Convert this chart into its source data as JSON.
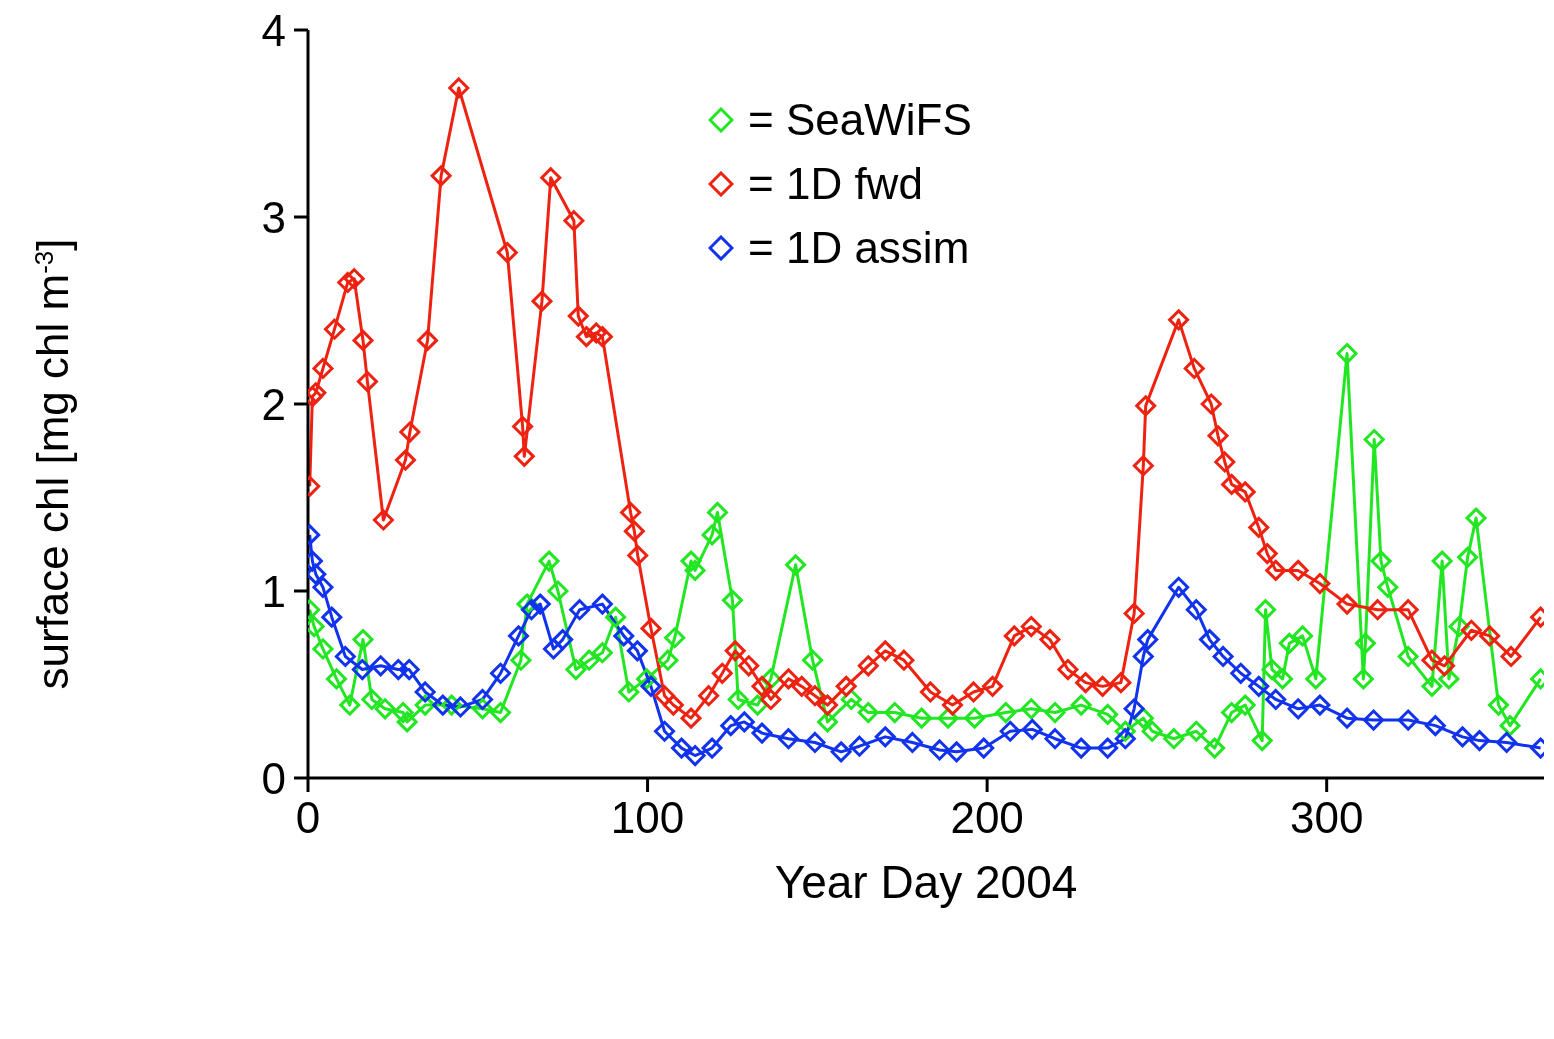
{
  "chart_data": {
    "type": "line",
    "xlabel": "Year Day 2004",
    "ylabel": "surface chl [mg chl m$^{-3}$]",
    "xlim": [
      0,
      364
    ],
    "ylim": [
      0,
      4
    ],
    "xticks": [
      0,
      100,
      200,
      300
    ],
    "yticks": [
      0,
      1,
      2,
      3,
      4
    ],
    "grid": false,
    "legend": "top",
    "marker": "diamond",
    "line_style": "solid",
    "series": [
      {
        "name": "= SeaWiFS",
        "color": "#22e622",
        "x": [
          0.5,
          1.8,
          4.4,
          8.4,
          12.3,
          16.2,
          18.8,
          22.7,
          28,
          29.2,
          34.5,
          42.3,
          51.4,
          56.7,
          62.7,
          64.5,
          71,
          73.6,
          78.9,
          82.8,
          86.7,
          90.6,
          94.5,
          99.7,
          106,
          108,
          112.8,
          114,
          119,
          120.6,
          125,
          126.7,
          132.4,
          136.3,
          143.6,
          148.6,
          153,
          160,
          165,
          172.8,
          180.7,
          188.5,
          196.3,
          205.5,
          213,
          220,
          227.7,
          235.5,
          240.7,
          246,
          248.6,
          255,
          261.6,
          267,
          272,
          276,
          281,
          282,
          283.9,
          287,
          289,
          292.9,
          296.8,
          306,
          310.8,
          311.4,
          314,
          316,
          318,
          324,
          331,
          334,
          336,
          339,
          341.5,
          344,
          350.6,
          354,
          363
        ],
        "values": [
          0.9,
          0.81,
          0.69,
          0.53,
          0.39,
          0.74,
          0.42,
          0.37,
          0.35,
          0.3,
          0.39,
          0.39,
          0.37,
          0.35,
          0.63,
          0.93,
          1.16,
          1.0,
          0.58,
          0.63,
          0.67,
          0.86,
          0.46,
          0.53,
          0.63,
          0.75,
          1.16,
          1.11,
          1.3,
          1.42,
          0.95,
          0.42,
          0.39,
          0.53,
          1.14,
          0.63,
          0.3,
          0.42,
          0.35,
          0.35,
          0.32,
          0.32,
          0.32,
          0.35,
          0.37,
          0.35,
          0.39,
          0.34,
          0.25,
          0.32,
          0.25,
          0.21,
          0.25,
          0.16,
          0.35,
          0.39,
          0.2,
          0.9,
          0.58,
          0.53,
          0.72,
          0.76,
          0.53,
          2.27,
          0.53,
          0.72,
          1.81,
          1.16,
          1.02,
          0.65,
          0.49,
          1.16,
          0.53,
          0.81,
          1.18,
          1.39,
          0.39,
          0.28,
          0.53
        ]
      },
      {
        "name": "= 1D fwd",
        "color": "#ee2211",
        "x": [
          0.5,
          1.3,
          2.3,
          4.4,
          7.8,
          11.7,
          13.6,
          16.2,
          17.5,
          22.2,
          28.7,
          30,
          35.2,
          39.2,
          44.4,
          58.7,
          63.2,
          63.7,
          68.9,
          71.5,
          78.3,
          79.6,
          82,
          84.9,
          86.7,
          95,
          96.1,
          97.1,
          101,
          105,
          107.6,
          112.8,
          118,
          122,
          125.8,
          129.8,
          133.7,
          136.3,
          141.5,
          145.4,
          149.3,
          153,
          158.5,
          165,
          170,
          175.5,
          183.3,
          189.8,
          196,
          201.6,
          208,
          213,
          218.5,
          223.8,
          229,
          234,
          239.4,
          243.3,
          246,
          246.7,
          256.4,
          261,
          266,
          268,
          270,
          272,
          276,
          280,
          282.5,
          285,
          291.6,
          298,
          306,
          315,
          324,
          331,
          334.7,
          342.6,
          348,
          354.3,
          363
        ],
        "values": [
          1.56,
          2.04,
          2.06,
          2.19,
          2.4,
          2.65,
          2.67,
          2.34,
          2.12,
          1.38,
          1.7,
          1.85,
          2.34,
          3.22,
          3.69,
          2.81,
          1.88,
          1.72,
          2.55,
          3.21,
          2.98,
          2.47,
          2.36,
          2.38,
          2.36,
          1.42,
          1.32,
          1.19,
          0.8,
          0.44,
          0.39,
          0.32,
          0.44,
          0.56,
          0.68,
          0.6,
          0.49,
          0.42,
          0.53,
          0.49,
          0.44,
          0.39,
          0.49,
          0.6,
          0.68,
          0.63,
          0.46,
          0.39,
          0.46,
          0.49,
          0.76,
          0.81,
          0.74,
          0.58,
          0.51,
          0.49,
          0.51,
          0.88,
          1.67,
          1.99,
          2.45,
          2.19,
          2.0,
          1.83,
          1.69,
          1.57,
          1.53,
          1.34,
          1.2,
          1.11,
          1.11,
          1.04,
          0.93,
          0.9,
          0.9,
          0.63,
          0.6,
          0.79,
          0.76,
          0.65,
          0.86
        ]
      },
      {
        "name": "= 1D assim",
        "color": "#1133ee",
        "x": [
          0.5,
          1.3,
          2.3,
          4.4,
          7,
          11,
          16,
          21.4,
          26.6,
          29.8,
          34.5,
          39.7,
          44.9,
          51.4,
          56.7,
          62,
          65.8,
          68.4,
          72.3,
          75,
          80,
          86.7,
          93,
          97,
          101,
          105,
          110,
          114,
          119,
          124.5,
          128.5,
          133.7,
          141.5,
          149.3,
          157,
          162.4,
          170,
          178,
          186,
          191,
          199,
          206.8,
          213.3,
          220,
          227.7,
          235.5,
          240.7,
          243.3,
          246,
          247.3,
          256.4,
          261.6,
          265.5,
          269.5,
          274.7,
          280,
          285,
          291.6,
          298,
          306,
          313.8,
          324,
          332,
          340,
          345,
          353,
          363
        ],
        "values": [
          1.3,
          1.16,
          1.09,
          1.02,
          0.86,
          0.65,
          0.58,
          0.6,
          0.58,
          0.58,
          0.46,
          0.39,
          0.38,
          0.42,
          0.56,
          0.76,
          0.9,
          0.93,
          0.69,
          0.74,
          0.9,
          0.93,
          0.76,
          0.68,
          0.49,
          0.25,
          0.16,
          0.12,
          0.16,
          0.28,
          0.3,
          0.24,
          0.21,
          0.19,
          0.14,
          0.17,
          0.22,
          0.19,
          0.15,
          0.14,
          0.16,
          0.25,
          0.26,
          0.21,
          0.16,
          0.16,
          0.21,
          0.37,
          0.65,
          0.74,
          1.02,
          0.9,
          0.74,
          0.65,
          0.56,
          0.49,
          0.42,
          0.37,
          0.39,
          0.32,
          0.31,
          0.31,
          0.28,
          0.22,
          0.2,
          0.19,
          0.16
        ]
      }
    ]
  }
}
